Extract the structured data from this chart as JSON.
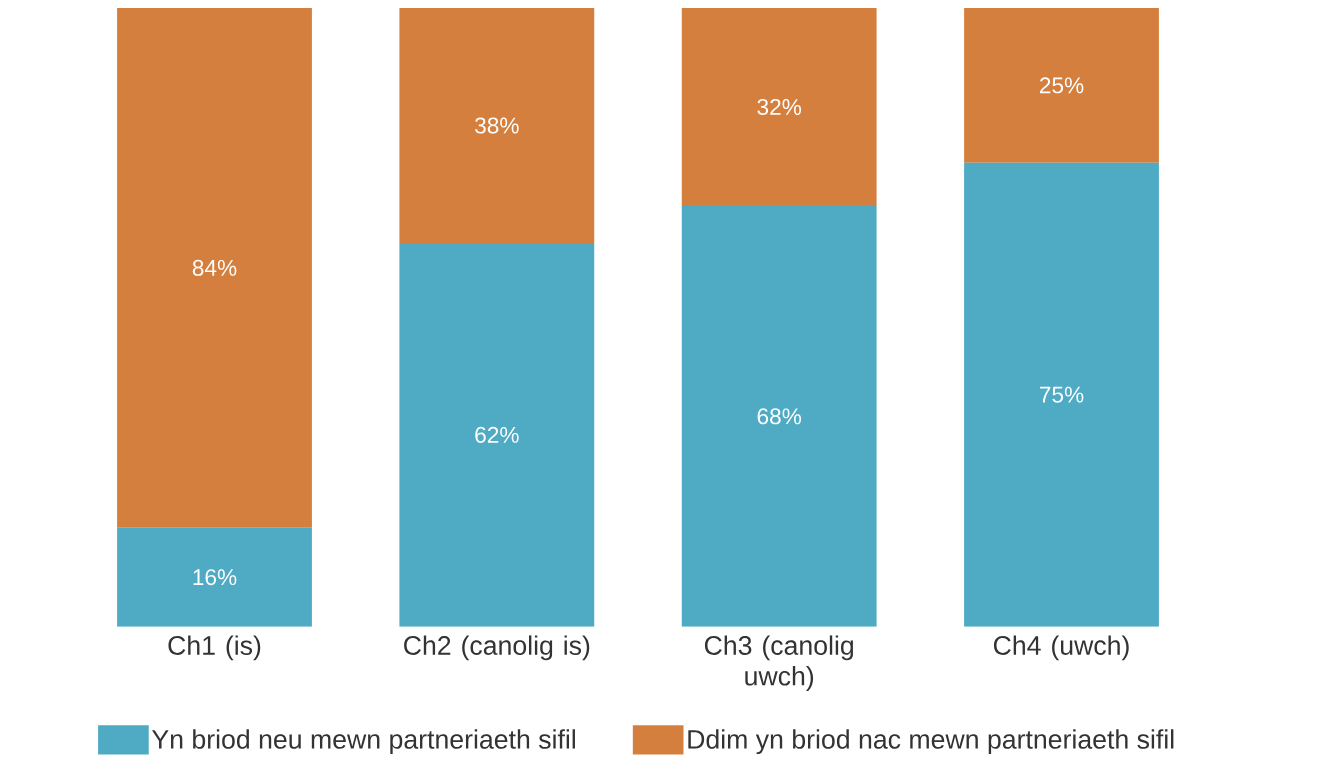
{
  "chart_data": {
    "type": "bar",
    "stacked": true,
    "legend": "bottom",
    "categories": [
      "Ch1 (is)",
      "Ch2 (canolig is)",
      "Ch3 (canolig uwch)",
      "Ch4 (uwch)"
    ],
    "series": [
      {
        "name": "Yn briod neu mewn partneriaeth sifil",
        "color": "#4faac4",
        "values": [
          16,
          62,
          68,
          75
        ],
        "value_labels": [
          "16%",
          "62%",
          "68%",
          "75%"
        ]
      },
      {
        "name": "Ddim yn briod nac mewn partneriaeth sifil",
        "color": "#d47f3e",
        "values": [
          84,
          38,
          32,
          25
        ],
        "value_labels": [
          "84%",
          "38%",
          "32%",
          "25%"
        ]
      }
    ]
  }
}
